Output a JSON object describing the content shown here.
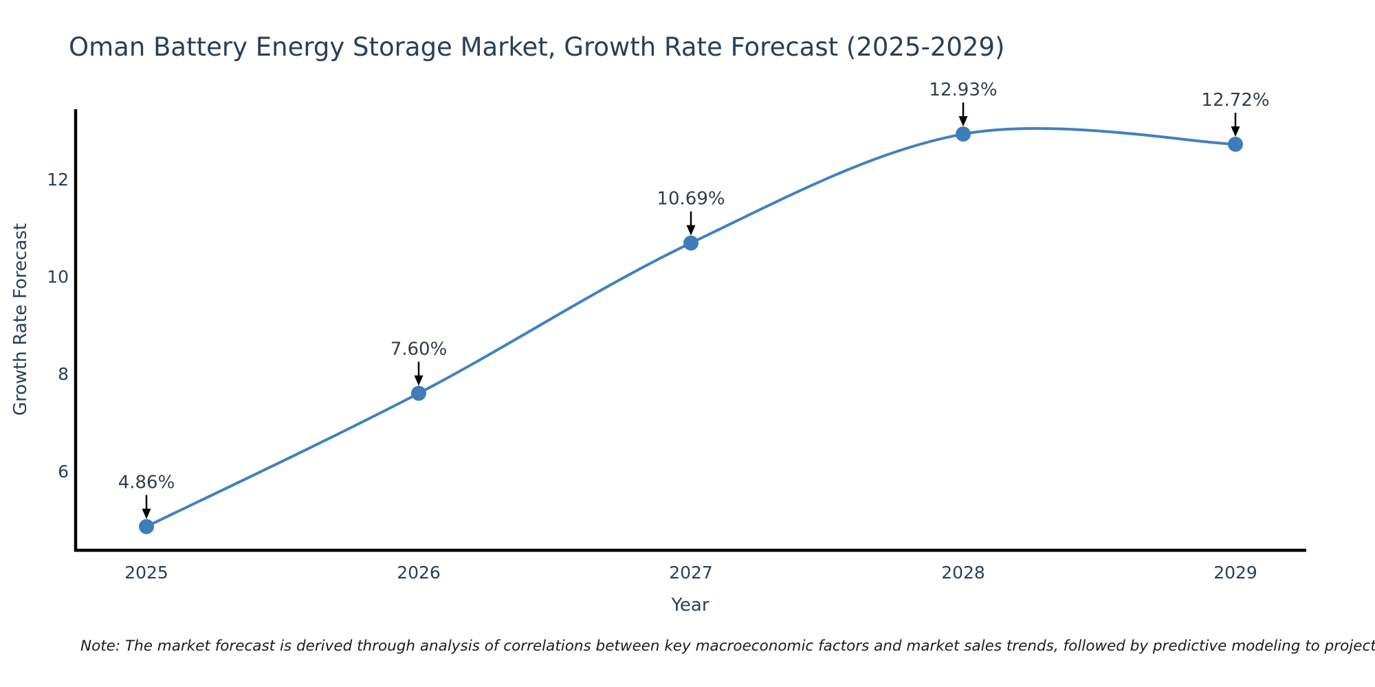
{
  "title": "Oman Battery Energy Storage Market, Growth Rate Forecast (2025-2029)",
  "note": "Note: The market forecast is derived through analysis of correlations between key macroeconomic factors and market sales trends, followed by predictive modeling to project future sales.",
  "chart_data": {
    "type": "line",
    "title": "Oman Battery Energy Storage Market, Growth Rate Forecast (2025-2029)",
    "x": [
      2025,
      2026,
      2027,
      2028,
      2029
    ],
    "x_tick_labels": [
      "2025",
      "2026",
      "2027",
      "2028",
      "2029"
    ],
    "values": [
      4.86,
      7.6,
      10.69,
      12.93,
      12.72
    ],
    "point_labels": [
      "4.86%",
      "7.60%",
      "10.69%",
      "12.93%",
      "12.72%"
    ],
    "xlabel": "Year",
    "ylabel": "Growth Rate Forecast",
    "yticks": [
      6,
      8,
      10,
      12
    ],
    "ylim": [
      4.36,
      13.44
    ],
    "xlim": [
      2024.73,
      2029.26
    ],
    "grid": false,
    "legend_position": "none",
    "line_shape": "spline",
    "marker": "circle",
    "annotation_arrows": true,
    "colors": {
      "line": "#4181bd",
      "marker": "#3d7db9",
      "text": "#2c3e56",
      "annotation": "#333c4a",
      "arrow": "#000000",
      "axis": "#000000",
      "background": "#ffffff"
    }
  }
}
